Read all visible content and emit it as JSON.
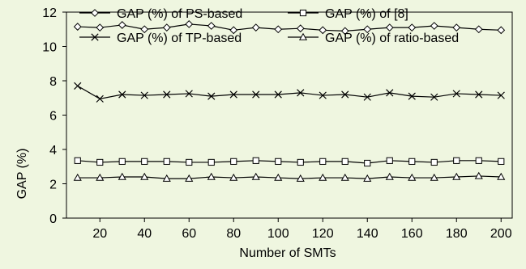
{
  "chart_data": {
    "type": "line",
    "xlabel": "Number of SMTs",
    "ylabel": "GAP (%)",
    "xlim": [
      5,
      205
    ],
    "ylim": [
      0,
      12
    ],
    "xticks": [
      20,
      40,
      60,
      80,
      100,
      120,
      140,
      160,
      180,
      200
    ],
    "yticks": [
      0,
      2,
      4,
      6,
      8,
      10,
      12
    ],
    "ytick_labels": [
      "0",
      "2",
      "4",
      "6",
      "8",
      "10",
      "12"
    ],
    "grid": false,
    "legend_position": "top",
    "x": [
      10,
      20,
      30,
      40,
      50,
      60,
      70,
      80,
      90,
      100,
      110,
      120,
      130,
      140,
      150,
      160,
      170,
      180,
      190,
      200
    ],
    "series": [
      {
        "name": "GAP (%) of PS-based",
        "marker": "diamond",
        "values": [
          11.15,
          11.1,
          11.25,
          11.0,
          11.1,
          11.3,
          11.2,
          10.95,
          11.1,
          11.0,
          11.05,
          10.95,
          10.9,
          11.0,
          11.1,
          11.1,
          11.2,
          11.1,
          11.0,
          10.95
        ]
      },
      {
        "name": "GAP (%) of [8]",
        "marker": "square",
        "values": [
          3.35,
          3.25,
          3.3,
          3.3,
          3.3,
          3.25,
          3.25,
          3.3,
          3.35,
          3.3,
          3.25,
          3.3,
          3.3,
          3.2,
          3.35,
          3.3,
          3.25,
          3.35,
          3.35,
          3.3
        ]
      },
      {
        "name": "GAP (%) of TP-based",
        "marker": "x",
        "values": [
          7.7,
          6.95,
          7.2,
          7.15,
          7.2,
          7.25,
          7.1,
          7.2,
          7.2,
          7.2,
          7.3,
          7.15,
          7.2,
          7.05,
          7.3,
          7.1,
          7.05,
          7.25,
          7.2,
          7.15
        ]
      },
      {
        "name": "GAP (%) of ratio-based",
        "marker": "triangle",
        "values": [
          2.35,
          2.35,
          2.4,
          2.4,
          2.3,
          2.3,
          2.4,
          2.35,
          2.4,
          2.35,
          2.3,
          2.35,
          2.35,
          2.3,
          2.4,
          2.35,
          2.35,
          2.4,
          2.45,
          2.4
        ]
      }
    ]
  }
}
